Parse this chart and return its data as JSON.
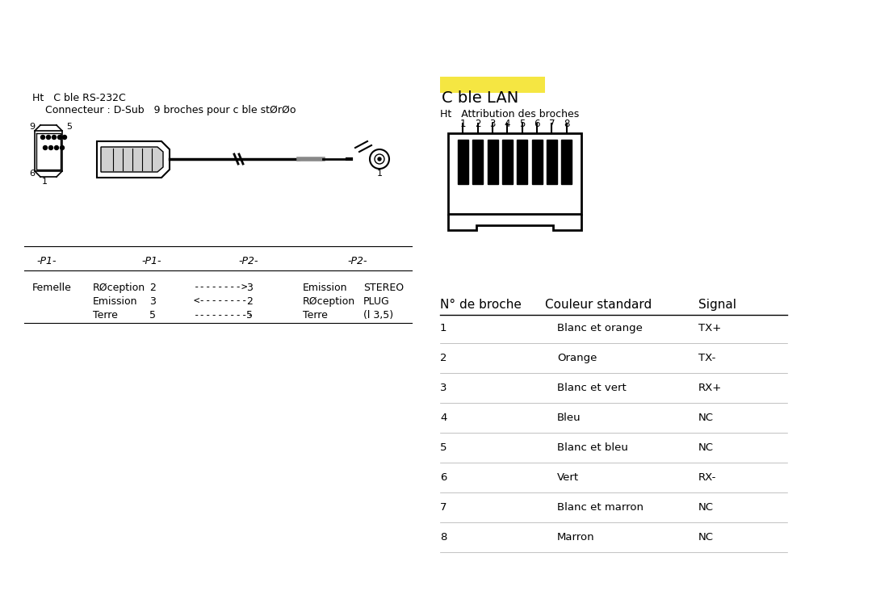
{
  "bg_color": "#ffffff",
  "title_left": "Ht   C ble RS-232C",
  "subtitle_left": "    Connecteur : D-Sub   9 broches pour c ble stØrØo",
  "title_right": "C ble LAN",
  "title_right_bg": "#f5e642",
  "subtitle_right": "Ht   Attribution des broches",
  "pin_numbers": [
    "1",
    "2",
    "3",
    "4",
    "5",
    "6",
    "7",
    "8"
  ],
  "table_headers": [
    "N° de broche",
    "Couleur standard",
    "Signal"
  ],
  "table_rows": [
    [
      "1",
      "Blanc et orange",
      "TX+"
    ],
    [
      "2",
      "Orange",
      "TX-"
    ],
    [
      "3",
      "Blanc et vert",
      "RX+"
    ],
    [
      "4",
      "Bleu",
      "NC"
    ],
    [
      "5",
      "Blanc et bleu",
      "NC"
    ],
    [
      "6",
      "Vert",
      "RX-"
    ],
    [
      "7",
      "Blanc et marron",
      "NC"
    ],
    [
      "8",
      "Marron",
      "NC"
    ]
  ],
  "p1_header": "-P1-",
  "p1_header2": "-P1-",
  "p2_header": "-P2-",
  "p2_header2": "-P2-",
  "conn_rows": [
    [
      "Femelle",
      "RØception",
      "2",
      "-------->",
      "3",
      "Emission",
      "STEREO"
    ],
    [
      "",
      "Emission",
      "3",
      "<--------",
      "2",
      "RØception",
      "PLUG"
    ],
    [
      "",
      "Terre",
      "5",
      "----------",
      "5",
      "Terre",
      "(l 3,5)"
    ]
  ]
}
